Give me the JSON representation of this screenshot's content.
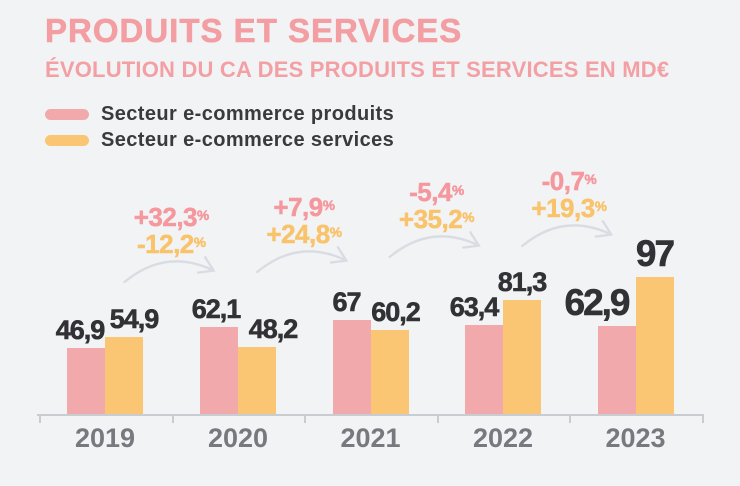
{
  "header": {
    "title": "PRODUITS ET SERVICES",
    "subtitle": "ÉVOLUTION DU CA DES PRODUITS ET SERVICES EN MD€"
  },
  "legend": {
    "items": [
      {
        "key": "produits",
        "label": "Secteur e-commerce produits",
        "color": "#F2A9AC"
      },
      {
        "key": "services",
        "label": "Secteur e-commerce services",
        "color": "#FAC674"
      }
    ]
  },
  "chart_data": {
    "type": "bar",
    "title": "PRODUITS ET SERVICES",
    "subtitle": "ÉVOLUTION DU CA DES PRODUITS ET SERVICES EN MD€",
    "unit": "Md€",
    "categories": [
      "2019",
      "2020",
      "2021",
      "2022",
      "2023"
    ],
    "series": [
      {
        "name": "Secteur e-commerce produits",
        "color": "#F2A9AC",
        "values": [
          46.9,
          62.1,
          67,
          63.4,
          62.9
        ],
        "display_labels": [
          "46,9",
          "62,1",
          "67",
          "63,4",
          "62,9"
        ]
      },
      {
        "name": "Secteur e-commerce services",
        "color": "#FAC674",
        "values": [
          54.9,
          48.2,
          60.2,
          81.3,
          97
        ],
        "display_labels": [
          "54,9",
          "48,2",
          "60,2",
          "81,3",
          "97"
        ]
      }
    ],
    "annotations": [
      {
        "from": "2019",
        "to": "2020",
        "produits": "+32,3%",
        "services": "-12,2%"
      },
      {
        "from": "2020",
        "to": "2021",
        "produits": "+7,9%",
        "services": "+24,8%"
      },
      {
        "from": "2021",
        "to": "2022",
        "produits": "-5,4%",
        "services": "+35,2%"
      },
      {
        "from": "2022",
        "to": "2023",
        "produits": "-0,7%",
        "services": "+19,3%"
      }
    ],
    "highlight_category": "2023",
    "ylim": [
      0,
      100
    ],
    "grid": false,
    "legend_position": "top-left",
    "value_labels_shown": true
  },
  "colors": {
    "background": "#F2F3F5",
    "title_pink": "#F39EA3",
    "annotation_pink": "#F5989E",
    "annotation_yellow": "#F8C36B",
    "bar_produits": "#F2A9AC",
    "bar_services": "#FAC674",
    "value_label": "#323236",
    "axis": "#C9CCD1",
    "year_label": "#76797D",
    "arrow": "#D9DDE3",
    "legend_text": "#3A3A3E"
  }
}
